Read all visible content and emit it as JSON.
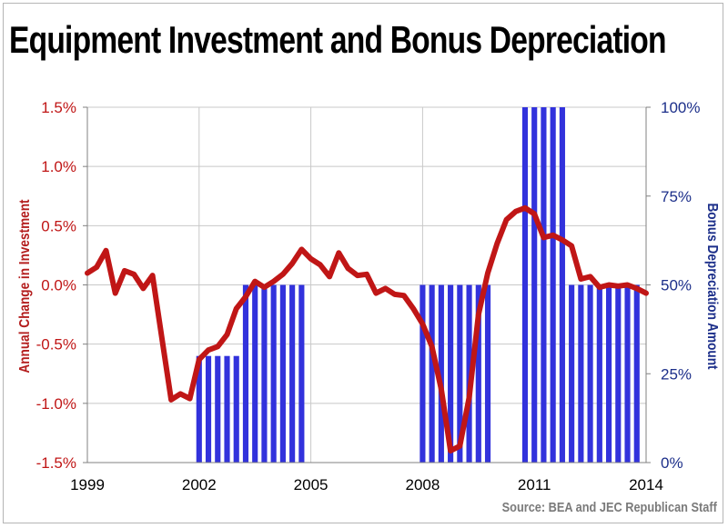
{
  "title": "Equipment Investment and Bonus Depreciation",
  "source": "Source: BEA and JEC Republican Staff",
  "colors": {
    "line": "#c01616",
    "bars": "#3232dc",
    "left_axis_text": "#c01616",
    "right_axis_text": "#1c2f8a",
    "grid": "#c8c8c8"
  },
  "chart_data": {
    "type": "line",
    "title": "Equipment Investment and Bonus Depreciation",
    "xlabel": "",
    "ylabel": "Annual Change in Investment",
    "y2label": "Bonus Depreciation Amount",
    "xlim": [
      1999,
      2014
    ],
    "ylim": [
      -1.5,
      1.5
    ],
    "y2lim": [
      0,
      100
    ],
    "x_ticks": [
      "1999",
      "2002",
      "2005",
      "2008",
      "2011",
      "2014"
    ],
    "y_ticks": [
      "-1.5%",
      "-1.0%",
      "-0.5%",
      "0.0%",
      "0.5%",
      "1.0%",
      "1.5%"
    ],
    "y2_ticks": [
      "0%",
      "25%",
      "50%",
      "75%",
      "100%"
    ],
    "grid": true,
    "series": [
      {
        "name": "Annual Change in Investment",
        "type": "line",
        "x": [
          1999.0,
          1999.25,
          1999.5,
          1999.75,
          2000.0,
          2000.25,
          2000.5,
          2000.75,
          2001.0,
          2001.25,
          2001.5,
          2001.75,
          2002.0,
          2002.25,
          2002.5,
          2002.75,
          2003.0,
          2003.25,
          2003.5,
          2003.75,
          2004.0,
          2004.25,
          2004.5,
          2004.75,
          2005.0,
          2005.25,
          2005.5,
          2005.75,
          2006.0,
          2006.25,
          2006.5,
          2006.75,
          2007.0,
          2007.25,
          2007.5,
          2007.75,
          2008.0,
          2008.25,
          2008.5,
          2008.75,
          2009.0,
          2009.25,
          2009.5,
          2009.75,
          2010.0,
          2010.25,
          2010.5,
          2010.75,
          2011.0,
          2011.25,
          2011.5,
          2011.75,
          2012.0,
          2012.25,
          2012.5,
          2012.75,
          2013.0,
          2013.25,
          2013.5,
          2013.75,
          2014.0
        ],
        "values": [
          0.1,
          0.15,
          0.29,
          -0.07,
          0.12,
          0.09,
          -0.03,
          0.08,
          -0.45,
          -0.97,
          -0.92,
          -0.96,
          -0.63,
          -0.55,
          -0.52,
          -0.42,
          -0.2,
          -0.1,
          0.03,
          -0.02,
          0.03,
          0.09,
          0.18,
          0.3,
          0.22,
          0.17,
          0.07,
          0.27,
          0.14,
          0.08,
          0.09,
          -0.07,
          -0.03,
          -0.08,
          -0.09,
          -0.2,
          -0.33,
          -0.52,
          -0.88,
          -1.4,
          -1.36,
          -0.95,
          -0.25,
          0.1,
          0.35,
          0.55,
          0.62,
          0.65,
          0.6,
          0.4,
          0.42,
          0.38,
          0.33,
          0.05,
          0.07,
          -0.02,
          0.0,
          -0.01,
          0.0,
          -0.03,
          -0.07
        ]
      },
      {
        "name": "Bonus Depreciation Amount",
        "type": "bar",
        "axis": "right",
        "x": [
          2002.0,
          2002.25,
          2002.5,
          2002.75,
          2003.0,
          2003.25,
          2003.5,
          2003.75,
          2004.0,
          2004.25,
          2004.5,
          2004.75,
          2008.0,
          2008.25,
          2008.5,
          2008.75,
          2009.0,
          2009.25,
          2009.5,
          2009.75,
          2010.75,
          2011.0,
          2011.25,
          2011.5,
          2011.75,
          2012.0,
          2012.25,
          2012.5,
          2012.75,
          2013.0,
          2013.25,
          2013.5,
          2013.75
        ],
        "values": [
          30,
          30,
          30,
          30,
          30,
          50,
          50,
          50,
          50,
          50,
          50,
          50,
          50,
          50,
          50,
          50,
          50,
          50,
          50,
          50,
          100,
          100,
          100,
          100,
          100,
          50,
          50,
          50,
          50,
          50,
          50,
          50,
          50
        ]
      }
    ]
  }
}
